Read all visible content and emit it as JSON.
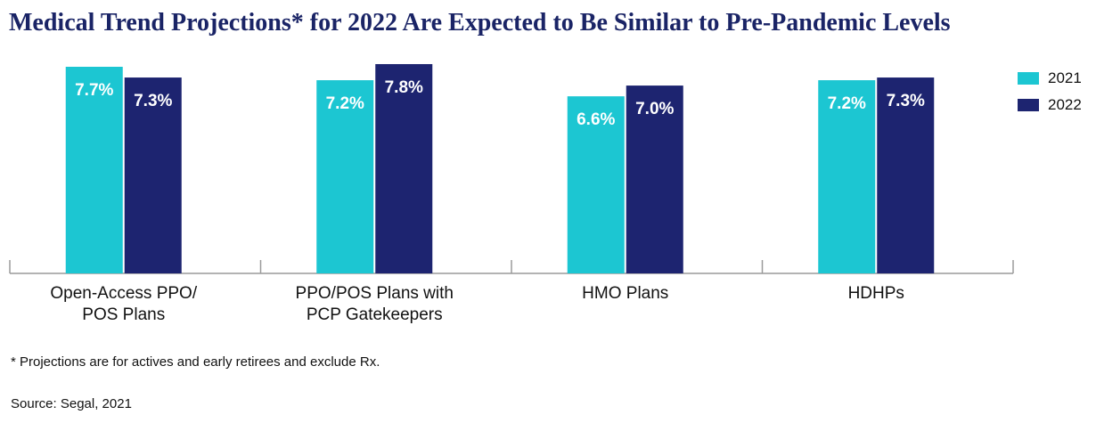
{
  "colors": {
    "title": "#1a2466",
    "series_2021": "#1cc6d2",
    "series_2022": "#1d2470",
    "axis": "#9a9a9a"
  },
  "chart_data": {
    "type": "bar",
    "title": "Medical Trend Projections* for 2022 Are Expected to Be Similar to Pre-Pandemic Levels",
    "categories": [
      [
        "Open-Access PPO/",
        "POS Plans"
      ],
      [
        "PPO/POS Plans with",
        "PCP Gatekeepers"
      ],
      [
        "HMO Plans"
      ],
      [
        "HDHPs"
      ]
    ],
    "series": [
      {
        "name": "2021",
        "values": [
          7.7,
          7.2,
          6.6,
          7.2
        ],
        "labels": [
          "7.7%",
          "7.2%",
          "6.6%",
          "7.2%"
        ]
      },
      {
        "name": "2022",
        "values": [
          7.3,
          7.8,
          7.0,
          7.3
        ],
        "labels": [
          "7.3%",
          "7.8%",
          "7.0%",
          "7.3%"
        ]
      }
    ],
    "ylim": [
      0,
      8.5
    ],
    "legend_position": "right"
  },
  "footnotes": {
    "note": "* Projections are for actives and early retirees and exclude Rx.",
    "source": "Source: Segal, 2021"
  }
}
